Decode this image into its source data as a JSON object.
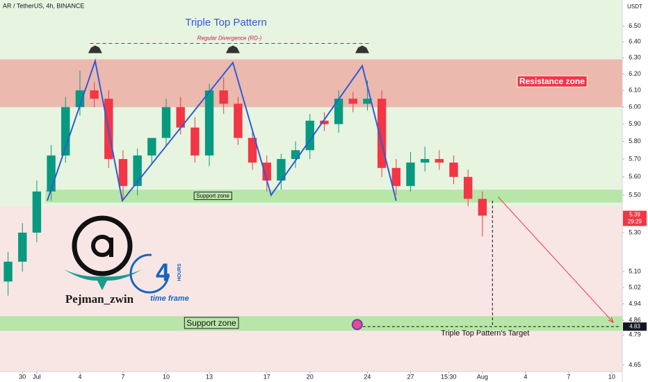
{
  "header": {
    "symbol": "AR / TetherUS, 4h, BINANCE",
    "currency": "USDT"
  },
  "chart_data": {
    "type": "candlestick",
    "title": "Triple Top Pattern",
    "x": [
      -1,
      0,
      1,
      2,
      3,
      4,
      5,
      6,
      7,
      8,
      9,
      10,
      11,
      12,
      13,
      14,
      15,
      16,
      17,
      18,
      19,
      20,
      21,
      22,
      23,
      24,
      25,
      26,
      27,
      28,
      29,
      30,
      31,
      32
    ],
    "open": [
      5.05,
      5.15,
      5.3,
      5.52,
      5.72,
      6.0,
      6.1,
      6.05,
      5.7,
      5.55,
      5.72,
      5.82,
      6.0,
      5.88,
      5.72,
      6.1,
      6.02,
      5.82,
      5.68,
      5.58,
      5.7,
      5.75,
      5.92,
      5.9,
      6.05,
      6.02,
      6.05,
      5.65,
      5.55,
      5.68,
      5.7,
      5.68,
      5.6,
      5.48
    ],
    "high": [
      5.2,
      5.35,
      5.58,
      5.78,
      6.06,
      6.22,
      6.15,
      6.1,
      5.75,
      5.76,
      5.8,
      6.05,
      6.06,
      5.94,
      6.14,
      6.18,
      6.06,
      5.86,
      5.72,
      5.73,
      5.8,
      5.96,
      5.97,
      6.1,
      6.09,
      6.16,
      6.1,
      5.7,
      5.74,
      5.77,
      5.75,
      5.72,
      5.64,
      5.52
    ],
    "low": [
      4.98,
      5.1,
      5.25,
      5.47,
      5.68,
      5.95,
      6.0,
      5.65,
      5.48,
      5.5,
      5.67,
      5.77,
      5.84,
      5.68,
      5.66,
      5.96,
      5.78,
      5.64,
      5.52,
      5.53,
      5.65,
      5.7,
      5.86,
      5.85,
      5.97,
      5.98,
      5.6,
      5.5,
      5.52,
      5.63,
      5.64,
      5.56,
      5.44,
      5.28
    ],
    "close": [
      5.15,
      5.3,
      5.52,
      5.72,
      6.0,
      6.1,
      6.05,
      5.7,
      5.55,
      5.72,
      5.82,
      6.0,
      5.88,
      5.72,
      6.1,
      6.02,
      5.82,
      5.68,
      5.58,
      5.7,
      5.75,
      5.92,
      5.9,
      6.05,
      6.02,
      6.05,
      5.65,
      5.55,
      5.68,
      5.7,
      5.68,
      5.6,
      5.48,
      5.39
    ],
    "up_color": "#089981",
    "down_color": "#f23645",
    "log_scale": true,
    "grid": false,
    "xlim": [
      -1.56,
      41.73
    ],
    "xticks": [
      {
        "value": 0,
        "label": "30"
      },
      {
        "value": 1,
        "label": "Jul"
      },
      4,
      7,
      10,
      13,
      17,
      20,
      24,
      27,
      {
        "value": 29.65,
        "label": "15:30"
      },
      {
        "value": 32,
        "label": "Aug"
      },
      {
        "value": 35,
        "label": "4"
      },
      {
        "value": 38,
        "label": "7"
      },
      {
        "value": 41,
        "label": "10"
      }
    ],
    "ylim": [
      4.62,
      6.67
    ],
    "yticks": [
      4.65,
      4.79,
      4.86,
      4.94,
      5.02,
      {
        "value": 5.1,
        "label": "5.10"
      },
      {
        "value": 5.3,
        "label": "5.30"
      },
      {
        "value": 5.5,
        "label": "5.50"
      },
      {
        "value": 5.6,
        "label": "5.60"
      },
      {
        "value": 5.7,
        "label": "5.70"
      },
      {
        "value": 5.8,
        "label": "5.80"
      },
      {
        "value": 5.9,
        "label": "5.90"
      },
      {
        "value": 6,
        "label": "6.00"
      },
      {
        "value": 6.1,
        "label": "6.10"
      },
      {
        "value": 6.2,
        "label": "6.20"
      },
      {
        "value": 6.3,
        "label": "6.30"
      },
      {
        "value": 6.4,
        "label": "6.40"
      },
      {
        "value": 6.5,
        "label": "6.50"
      }
    ],
    "zones": [
      {
        "label": "Resistance zone",
        "range": [
          6.0,
          6.29
        ],
        "from": -1.56,
        "color": "#ebb9ae",
        "label_color": "#f23645"
      },
      {
        "label": "Support zone",
        "range": [
          5.46,
          5.53
        ],
        "from": 1.6,
        "color": "#b7e6a8",
        "label_color": "#b7e6a8"
      },
      {
        "label": "Support zone",
        "range": [
          4.81,
          4.88
        ],
        "from": -1.56,
        "color": "#b7e6a8",
        "label_color": "#b7e6a8"
      }
    ],
    "pattern_line": {
      "color": "#2e5bd8",
      "x": [
        1.73,
        5.06,
        6.95,
        14.64,
        17.3,
        23.64,
        26.0
      ],
      "y": [
        5.47,
        6.28,
        5.47,
        6.27,
        5.5,
        6.25,
        5.47
      ]
    },
    "divergence": {
      "label": "Regular Divergence (RD-)",
      "x": [
        4.7,
        24.1
      ],
      "y": 6.39,
      "color": "#c2185b"
    },
    "target": {
      "label": "Triple Top Pattern's Target",
      "value": 4.83,
      "x": [
        23,
        41.5
      ],
      "drop_x": 32.7,
      "drop_from": 5.47
    },
    "projection": {
      "x": [
        33.1,
        41.1
      ],
      "y": [
        5.49,
        4.85
      ],
      "color": "#f23645"
    },
    "last_price": {
      "value": 5.39,
      "countdown": "29:29"
    }
  },
  "branding": {
    "author": "Pejman_zwin",
    "badge_number": "4",
    "badge_unit": "HOURS",
    "badge_caption": "time frame"
  }
}
